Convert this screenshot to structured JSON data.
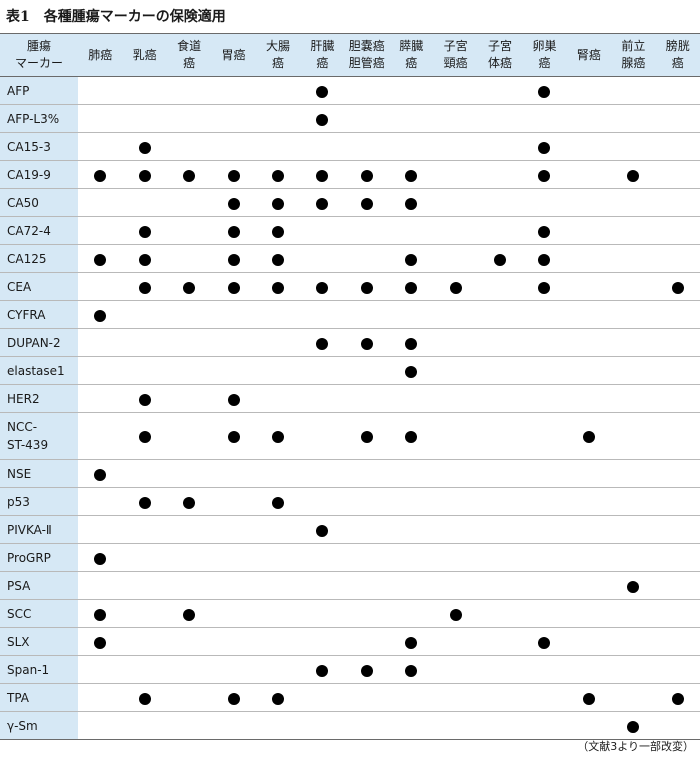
{
  "title": {
    "label": "表1",
    "text": "各種腫瘍マーカーの保険適用"
  },
  "header_corner": [
    "腫瘍",
    "マーカー"
  ],
  "columns": [
    [
      "肺癌"
    ],
    [
      "乳癌"
    ],
    [
      "食道",
      "癌"
    ],
    [
      "胃癌"
    ],
    [
      "大腸",
      "癌"
    ],
    [
      "肝臓",
      "癌"
    ],
    [
      "胆嚢癌",
      "胆管癌"
    ],
    [
      "膵臓",
      "癌"
    ],
    [
      "子宮",
      "頸癌"
    ],
    [
      "子宮",
      "体癌"
    ],
    [
      "卵巣",
      "癌"
    ],
    [
      "腎癌"
    ],
    [
      "前立",
      "腺癌"
    ],
    [
      "膀胱",
      "癌"
    ]
  ],
  "rows": [
    {
      "marker": [
        "AFP"
      ],
      "marks": [
        0,
        0,
        0,
        0,
        0,
        1,
        0,
        0,
        0,
        0,
        1,
        0,
        0,
        0
      ]
    },
    {
      "marker": [
        "AFP-L3%"
      ],
      "marks": [
        0,
        0,
        0,
        0,
        0,
        1,
        0,
        0,
        0,
        0,
        0,
        0,
        0,
        0
      ]
    },
    {
      "marker": [
        "CA15-3"
      ],
      "marks": [
        0,
        1,
        0,
        0,
        0,
        0,
        0,
        0,
        0,
        0,
        1,
        0,
        0,
        0
      ]
    },
    {
      "marker": [
        "CA19-9"
      ],
      "marks": [
        1,
        1,
        1,
        1,
        1,
        1,
        1,
        1,
        0,
        0,
        1,
        0,
        1,
        0
      ]
    },
    {
      "marker": [
        "CA50"
      ],
      "marks": [
        0,
        0,
        0,
        1,
        1,
        1,
        1,
        1,
        0,
        0,
        0,
        0,
        0,
        0
      ]
    },
    {
      "marker": [
        "CA72-4"
      ],
      "marks": [
        0,
        1,
        0,
        1,
        1,
        0,
        0,
        0,
        0,
        0,
        1,
        0,
        0,
        0
      ]
    },
    {
      "marker": [
        "CA125"
      ],
      "marks": [
        1,
        1,
        0,
        1,
        1,
        0,
        0,
        1,
        0,
        1,
        1,
        0,
        0,
        0
      ]
    },
    {
      "marker": [
        "CEA"
      ],
      "marks": [
        0,
        1,
        1,
        1,
        1,
        1,
        1,
        1,
        1,
        0,
        1,
        0,
        0,
        1
      ]
    },
    {
      "marker": [
        "CYFRA"
      ],
      "marks": [
        1,
        0,
        0,
        0,
        0,
        0,
        0,
        0,
        0,
        0,
        0,
        0,
        0,
        0
      ]
    },
    {
      "marker": [
        "DUPAN-2"
      ],
      "marks": [
        0,
        0,
        0,
        0,
        0,
        1,
        1,
        1,
        0,
        0,
        0,
        0,
        0,
        0
      ]
    },
    {
      "marker": [
        "elastase1"
      ],
      "marks": [
        0,
        0,
        0,
        0,
        0,
        0,
        0,
        1,
        0,
        0,
        0,
        0,
        0,
        0
      ]
    },
    {
      "marker": [
        "HER2"
      ],
      "marks": [
        0,
        1,
        0,
        1,
        0,
        0,
        0,
        0,
        0,
        0,
        0,
        0,
        0,
        0
      ]
    },
    {
      "marker": [
        "NCC-",
        "ST-439"
      ],
      "marks": [
        0,
        1,
        0,
        1,
        1,
        0,
        1,
        1,
        0,
        0,
        0,
        1,
        0,
        0
      ]
    },
    {
      "marker": [
        "NSE"
      ],
      "marks": [
        1,
        0,
        0,
        0,
        0,
        0,
        0,
        0,
        0,
        0,
        0,
        0,
        0,
        0
      ]
    },
    {
      "marker": [
        "p53"
      ],
      "marks": [
        0,
        1,
        1,
        0,
        1,
        0,
        0,
        0,
        0,
        0,
        0,
        0,
        0,
        0
      ]
    },
    {
      "marker": [
        "PIVKA-Ⅱ"
      ],
      "marks": [
        0,
        0,
        0,
        0,
        0,
        1,
        0,
        0,
        0,
        0,
        0,
        0,
        0,
        0
      ]
    },
    {
      "marker": [
        "ProGRP"
      ],
      "marks": [
        1,
        0,
        0,
        0,
        0,
        0,
        0,
        0,
        0,
        0,
        0,
        0,
        0,
        0
      ]
    },
    {
      "marker": [
        "PSA"
      ],
      "marks": [
        0,
        0,
        0,
        0,
        0,
        0,
        0,
        0,
        0,
        0,
        0,
        0,
        1,
        0
      ]
    },
    {
      "marker": [
        "SCC"
      ],
      "marks": [
        1,
        0,
        1,
        0,
        0,
        0,
        0,
        0,
        1,
        0,
        0,
        0,
        0,
        0
      ]
    },
    {
      "marker": [
        "SLX"
      ],
      "marks": [
        1,
        0,
        0,
        0,
        0,
        0,
        0,
        1,
        0,
        0,
        1,
        0,
        0,
        0
      ]
    },
    {
      "marker": [
        "Span-1"
      ],
      "marks": [
        0,
        0,
        0,
        0,
        0,
        1,
        1,
        1,
        0,
        0,
        0,
        0,
        0,
        0
      ]
    },
    {
      "marker": [
        "TPA"
      ],
      "marks": [
        0,
        1,
        0,
        1,
        1,
        0,
        0,
        0,
        0,
        0,
        0,
        1,
        0,
        1
      ]
    },
    {
      "marker": [
        "γ-Sm"
      ],
      "marks": [
        0,
        0,
        0,
        0,
        0,
        0,
        0,
        0,
        0,
        0,
        0,
        0,
        1,
        0
      ]
    }
  ],
  "footnote": "（文献3より一部改変）"
}
